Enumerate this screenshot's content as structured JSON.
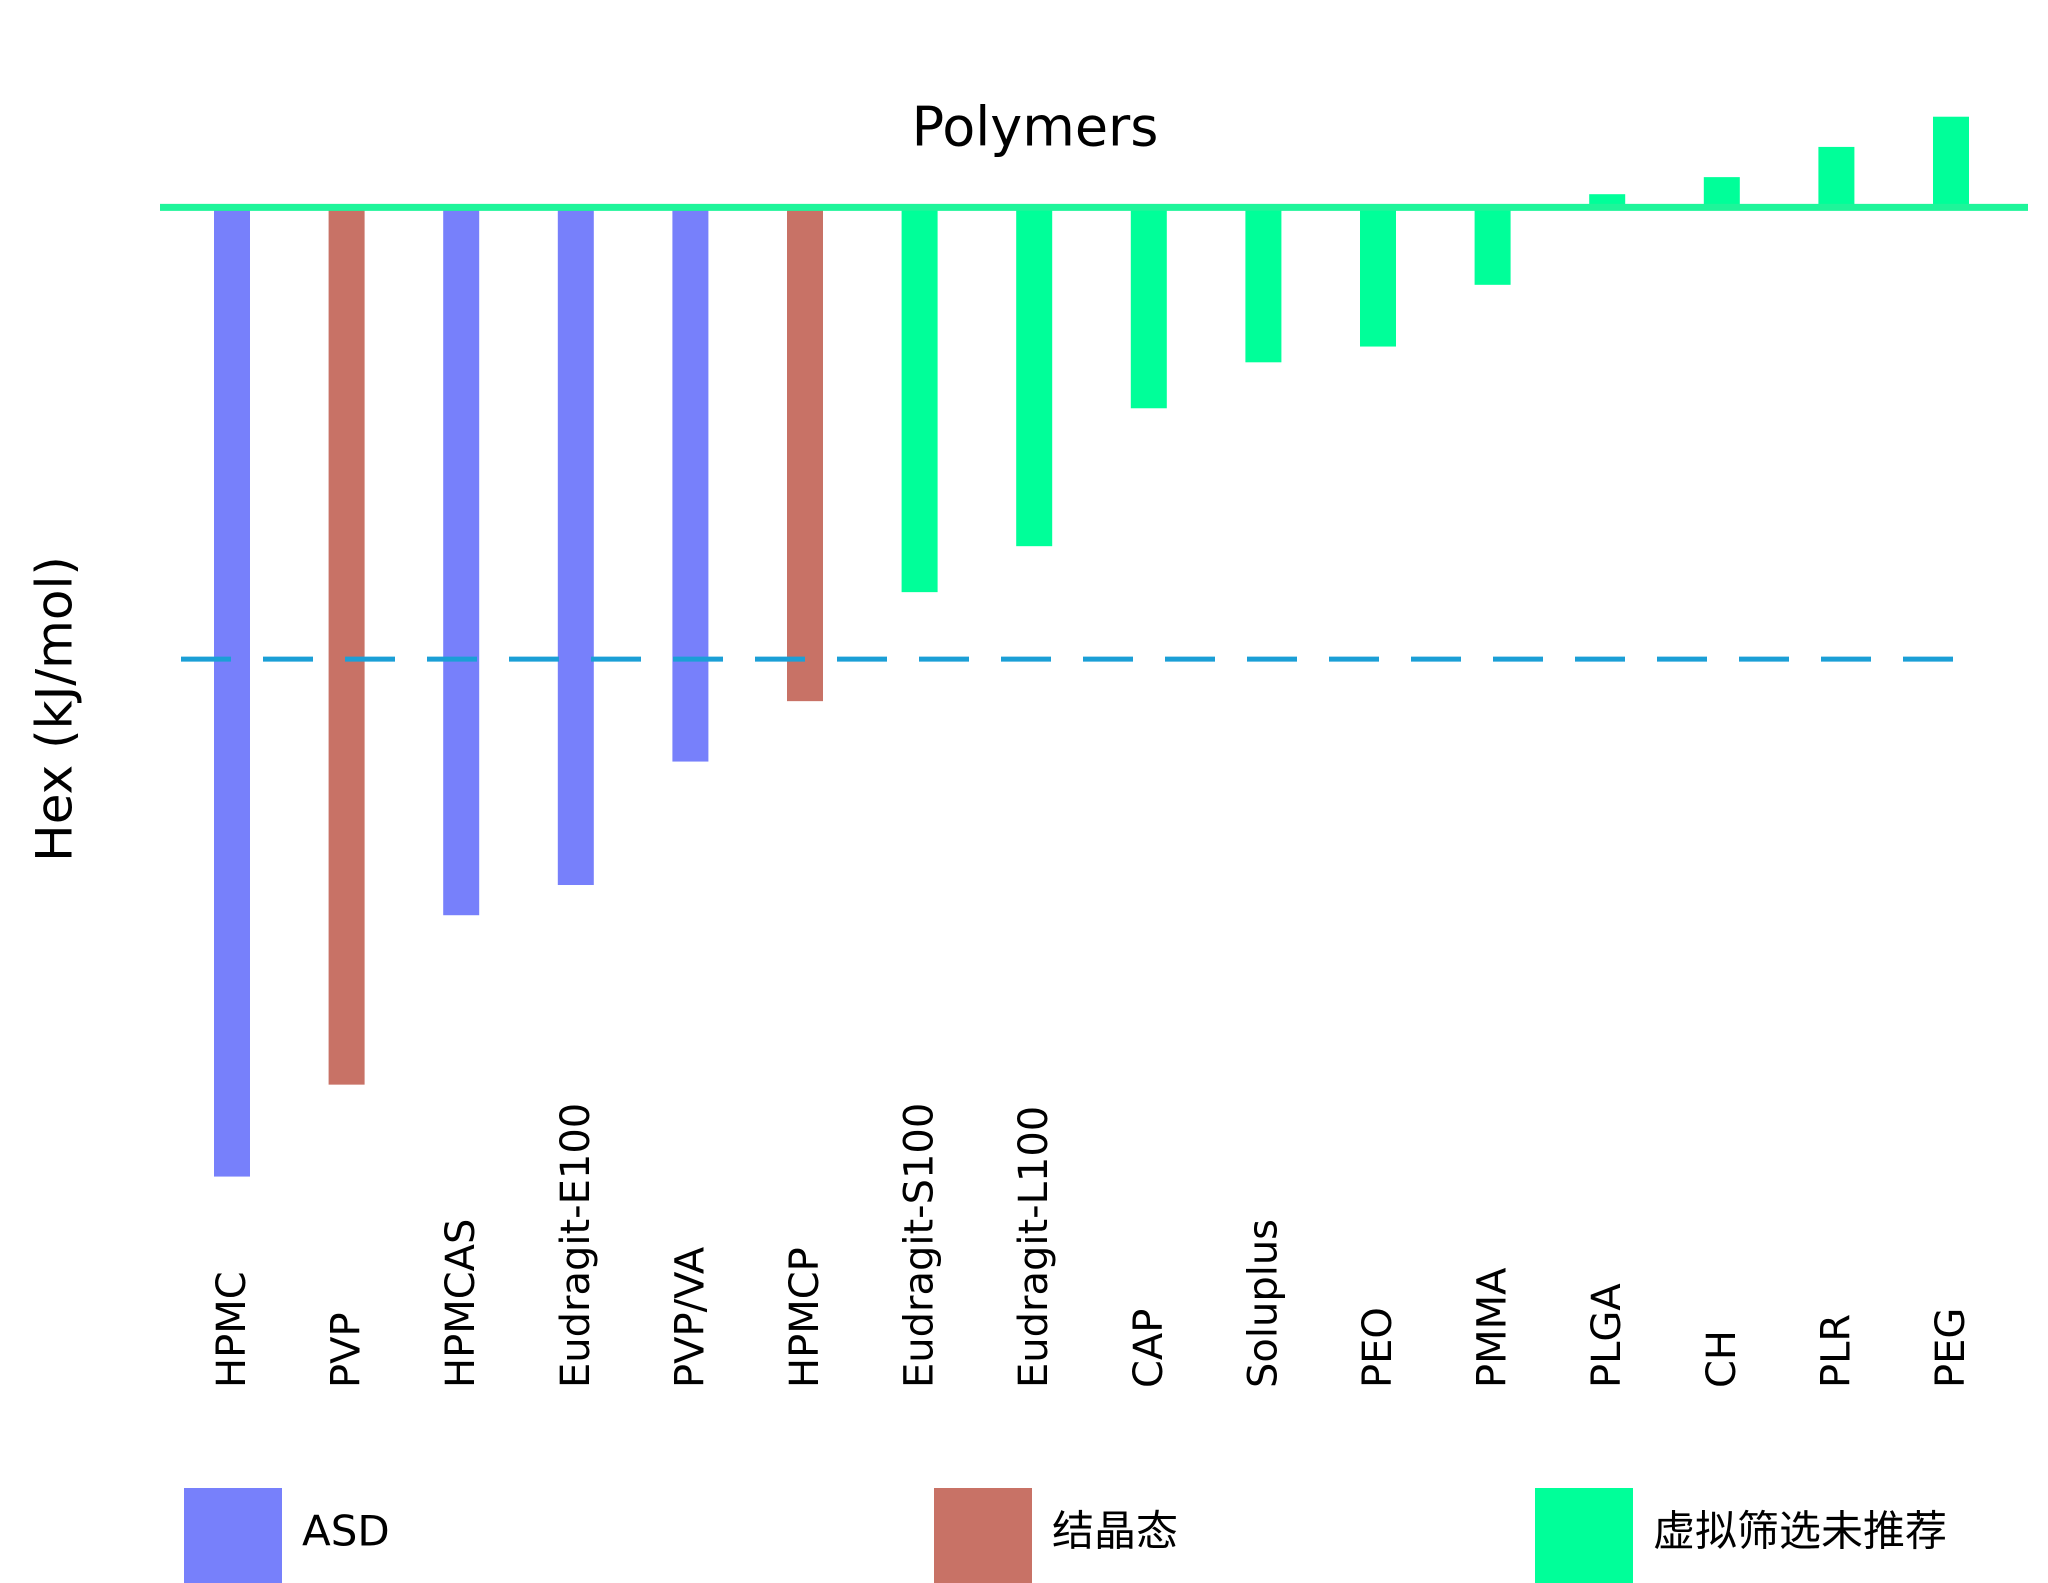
{
  "chart_data": {
    "type": "bar",
    "title": "Polymers",
    "y_label": "Hex (kJ/mol)",
    "categories": [
      "HPMC",
      "PVP",
      "HPMCAS",
      "Eudragit-E100",
      "PVP/VA",
      "HPMCP",
      "Eudragit-S100",
      "Eudragit-L100",
      "CAP",
      "Soluplus",
      "PEO",
      "PMMA",
      "PLGA",
      "CH",
      "PLR",
      "PEG"
    ],
    "values": [
      -73.8,
      -66.8,
      -53.9,
      -51.6,
      -42.2,
      -37.6,
      -29.3,
      -25.8,
      -15.3,
      -11.8,
      -10.6,
      -5.9,
      1.0,
      2.3,
      4.6,
      6.9
    ],
    "colors": [
      "#7780fb",
      "#c87266",
      "#7780fb",
      "#7780fb",
      "#7780fb",
      "#c87266",
      "#00ff99",
      "#00ff99",
      "#00ff99",
      "#00ff99",
      "#00ff99",
      "#00ff99",
      "#00ff99",
      "#00ff99",
      "#00ff99",
      "#00ff99"
    ],
    "ylim": [
      -80,
      10
    ],
    "baseline_color": "#1ef59a",
    "reference_line": {
      "value": -34.4,
      "color": "#1b9fd6",
      "dashed": true
    },
    "legend": [
      {
        "name": "ASD",
        "color": "#7780fb"
      },
      {
        "name": "结晶态",
        "color": "#c87266"
      },
      {
        "name": "虚拟筛选未推荐",
        "color": "#00ff99"
      }
    ]
  }
}
